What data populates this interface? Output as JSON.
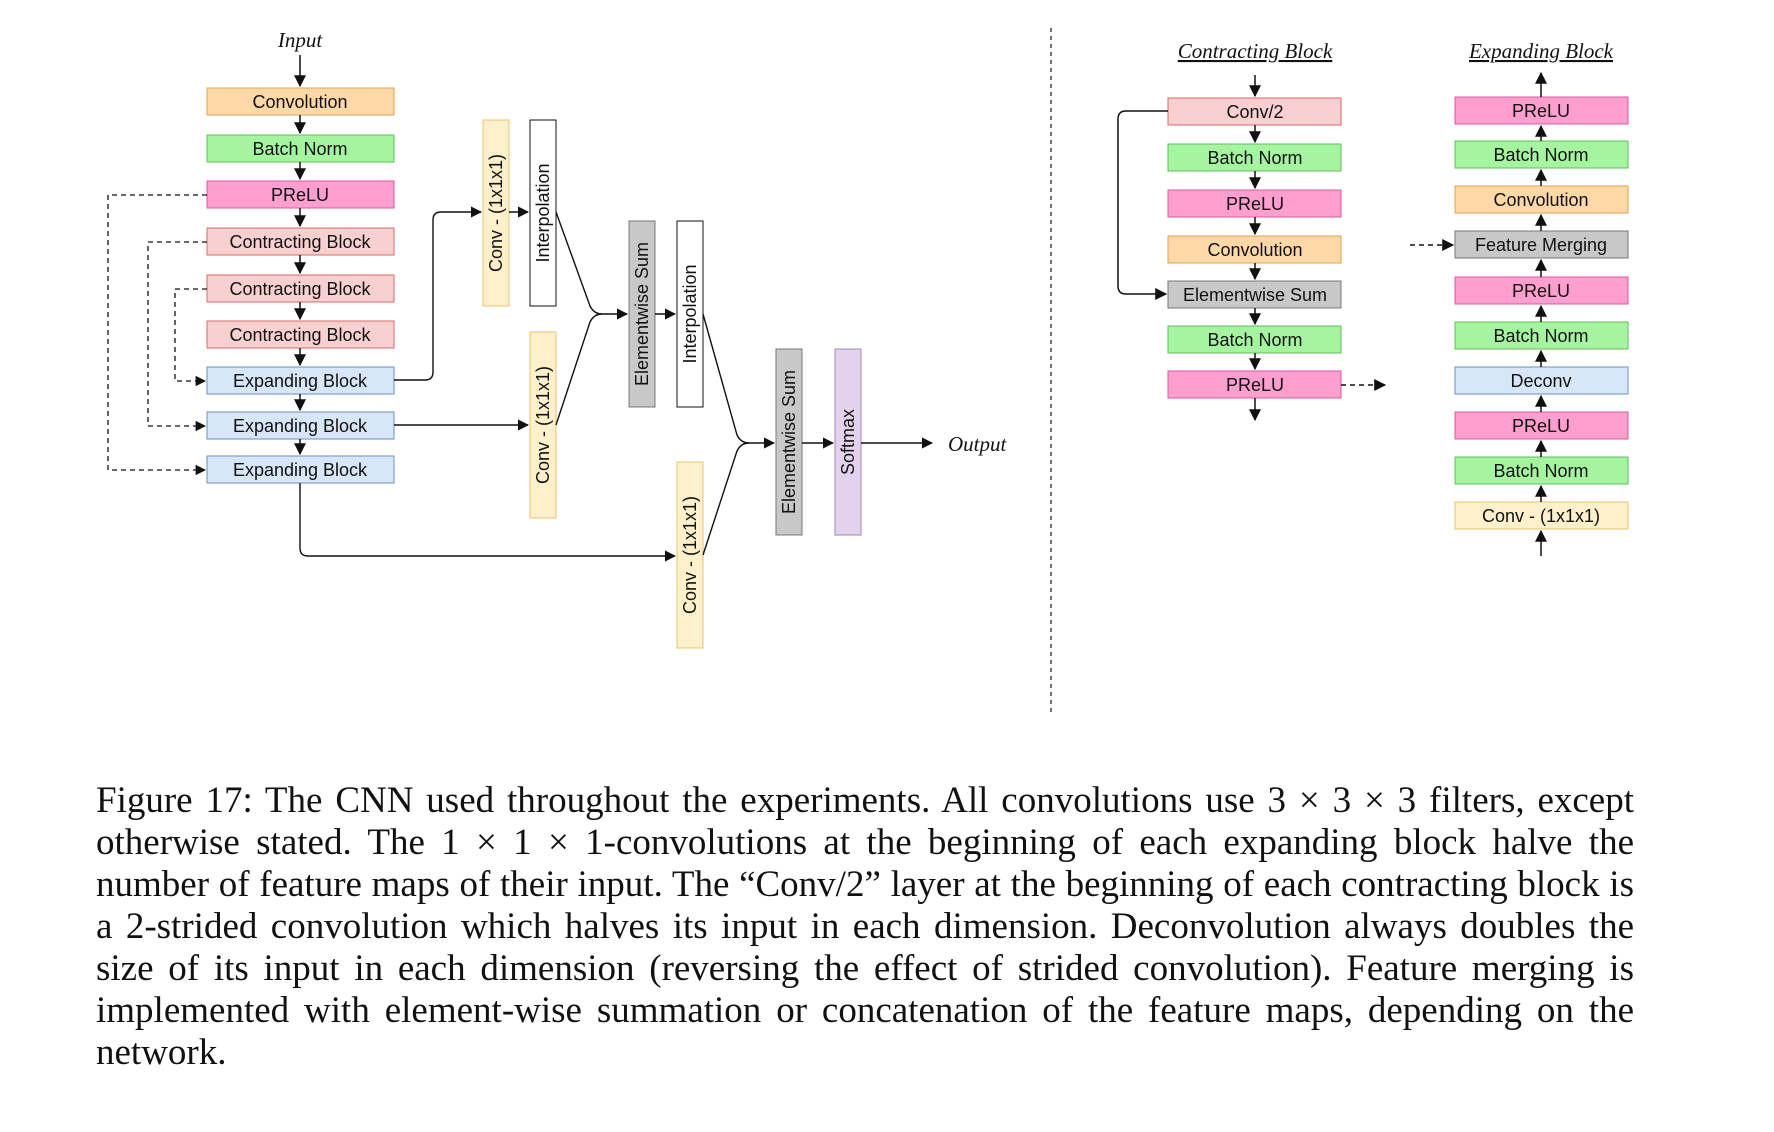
{
  "colors": {
    "orange_fill": "#ffd8a8",
    "orange_stroke": "#e6a24c",
    "green_fill": "#a5f5a0",
    "green_stroke": "#5fbf5a",
    "pink_fill": "#ff9fd0",
    "pink_stroke": "#d85a9e",
    "salmon_fill": "#f9d0d0",
    "salmon_stroke": "#d86a6a",
    "blue_fill": "#d8e6fa",
    "blue_stroke": "#6b8fc0",
    "yellow_fill": "#fff0cc",
    "yellow_stroke": "#e6c46b",
    "gray_fill": "#c8c8c8",
    "gray_stroke": "#777777",
    "lavender_fill": "#e2d2ec",
    "lavender_stroke": "#a784c2",
    "white_fill": "#ffffff",
    "white_stroke": "#111111"
  },
  "main": {
    "input_label": "Input",
    "output_label": "Output",
    "stack": [
      "Convolution",
      "Batch Norm",
      "PReLU",
      "Contracting Block",
      "Contracting Block",
      "Contracting Block",
      "Expanding Block",
      "Expanding Block",
      "Expanding Block"
    ],
    "conv1_top": "Conv - (1x1x1)",
    "interp_top": "Interpolation",
    "conv1_mid": "Conv - (1x1x1)",
    "elem_sum_1": "Elementwise Sum",
    "interp_2": "Interpolation",
    "conv1_bottom": "Conv - (1x1x1)",
    "elem_sum_2": "Elementwise Sum",
    "softmax": "Softmax"
  },
  "contracting": {
    "title": "Contracting Block",
    "items": [
      "Conv/2",
      "Batch Norm",
      "PReLU",
      "Convolution",
      "Elementwise Sum",
      "Batch Norm",
      "PReLU"
    ]
  },
  "expanding": {
    "title": "Expanding Block",
    "items_top_to_bottom": [
      "PReLU",
      "Batch Norm",
      "Convolution",
      "Feature Merging",
      "PReLU",
      "Batch Norm",
      "Deconv",
      "PReLU",
      "Batch Norm",
      "Conv - (1x1x1)"
    ]
  },
  "caption": "Figure 17: The CNN used throughout the experiments. All convolutions use 3 × 3 × 3 filters, except otherwise stated. The 1 × 1 × 1-convolutions at the beginning of each expanding block halve the number of feature maps of their input. The “Conv/2” layer at the beginning of each contracting block is a 2-strided convolution which halves its input in each dimension. Deconvolution always doubles the size of its input in each dimension (reversing the effect of strided convolution). Feature merging is implemented with element-wise summation or concatenation of the feature maps, depending on the network."
}
